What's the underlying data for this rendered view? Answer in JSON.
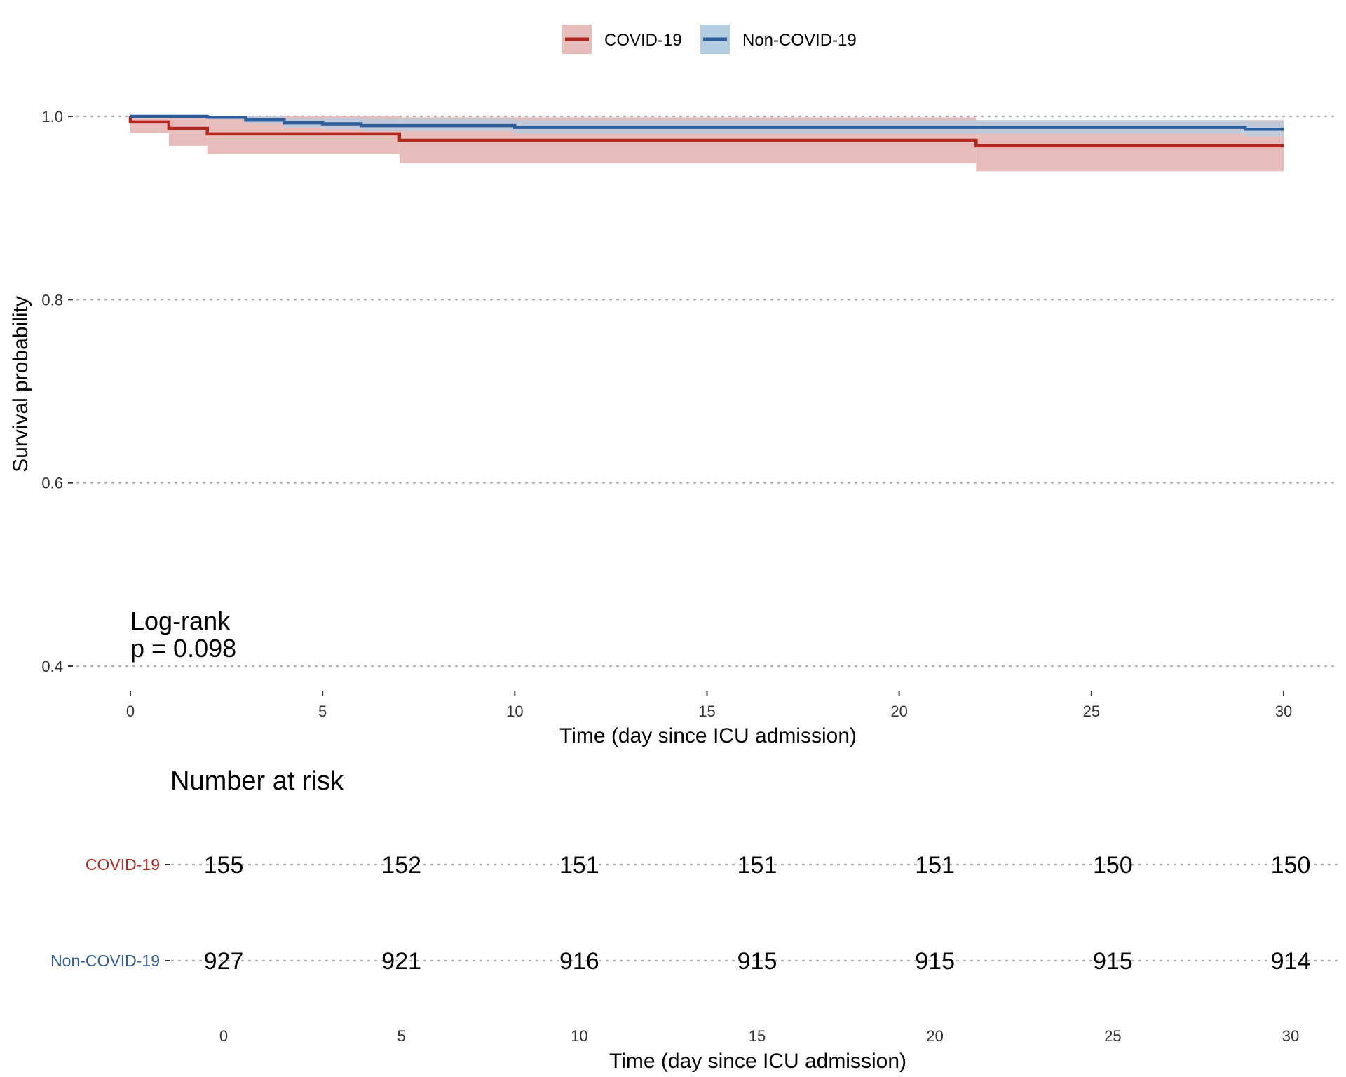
{
  "chart_data": [
    {
      "type": "line",
      "subtype": "kaplan-meier step curves with confidence bands",
      "xlabel": "Time (day since ICU admission)",
      "ylabel": "Survival probability",
      "xlim": [
        0,
        30
      ],
      "ylim": [
        0.4,
        1.0
      ],
      "x_ticks": [
        "0",
        "5",
        "10",
        "15",
        "20",
        "25",
        "30"
      ],
      "y_ticks": [
        "0.4",
        "0.6",
        "0.8",
        "1.0"
      ],
      "grid": "horizontal dotted",
      "legend_position": "top",
      "annotation": [
        "Log-rank",
        "p = 0.098"
      ],
      "series": [
        {
          "name": "COVID-19",
          "color": "#b2271f",
          "band_color": "#e6bdbb",
          "steps": [
            {
              "x": 0,
              "y": 0.994,
              "lower": 0.982,
              "upper": 1.0
            },
            {
              "x": 1,
              "y": 0.987,
              "lower": 0.968,
              "upper": 1.0
            },
            {
              "x": 2,
              "y": 0.981,
              "lower": 0.959,
              "upper": 1.0
            },
            {
              "x": 7,
              "y": 0.974,
              "lower": 0.949,
              "upper": 0.999
            },
            {
              "x": 22,
              "y": 0.968,
              "lower": 0.94,
              "upper": 0.996
            },
            {
              "x": 30,
              "y": 0.968,
              "lower": 0.94,
              "upper": 0.996
            }
          ]
        },
        {
          "name": "Non-COVID-19",
          "color": "#2e5d9b",
          "band_color": "#b3cde3",
          "steps": [
            {
              "x": 0,
              "y": 1.0,
              "lower": 1.0,
              "upper": 1.0
            },
            {
              "x": 2,
              "y": 0.999,
              "lower": 0.997,
              "upper": 1.0
            },
            {
              "x": 3,
              "y": 0.996,
              "lower": 0.992,
              "upper": 1.0
            },
            {
              "x": 4,
              "y": 0.993,
              "lower": 0.988,
              "upper": 0.998
            },
            {
              "x": 5,
              "y": 0.992,
              "lower": 0.986,
              "upper": 0.998
            },
            {
              "x": 6,
              "y": 0.99,
              "lower": 0.984,
              "upper": 0.997
            },
            {
              "x": 10,
              "y": 0.988,
              "lower": 0.981,
              "upper": 0.996
            },
            {
              "x": 29,
              "y": 0.986,
              "lower": 0.978,
              "upper": 0.995
            },
            {
              "x": 30,
              "y": 0.986,
              "lower": 0.978,
              "upper": 0.995
            }
          ]
        }
      ]
    },
    {
      "type": "table",
      "title": "Number at risk",
      "xlabel": "Time (day since ICU admission)",
      "x": [
        0,
        5,
        10,
        15,
        20,
        25,
        30
      ],
      "x_ticks": [
        "0",
        "5",
        "10",
        "15",
        "20",
        "25",
        "30"
      ],
      "rows": [
        {
          "name": "COVID-19",
          "color": "#b2271f",
          "values": [
            "155",
            "152",
            "151",
            "151",
            "151",
            "150",
            "150"
          ]
        },
        {
          "name": "Non-COVID-19",
          "color": "#2e5d9b",
          "values": [
            "927",
            "921",
            "916",
            "915",
            "915",
            "915",
            "914"
          ]
        }
      ]
    }
  ]
}
